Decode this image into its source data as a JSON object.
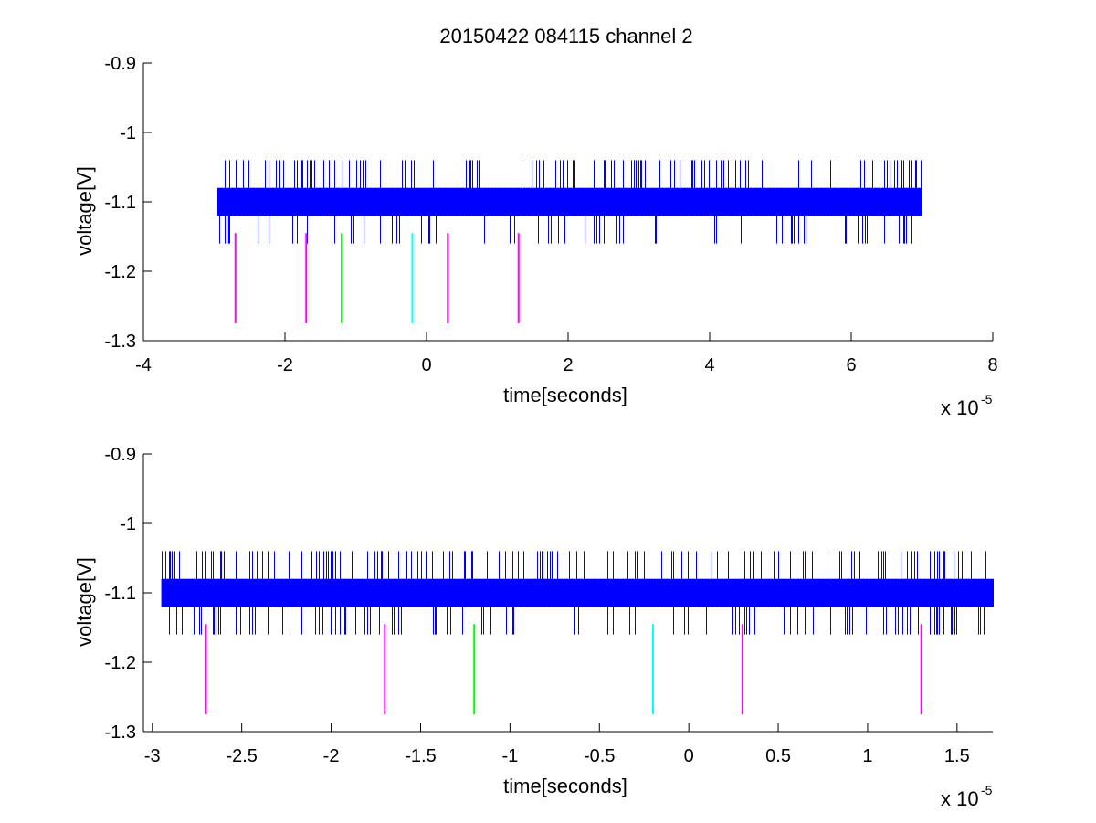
{
  "title": "20150422 084115 channel 2",
  "chart_data": [
    {
      "type": "line",
      "xlabel": "time[seconds]",
      "ylabel": "voltage[V]",
      "x_multiplier_prefix": "x 10",
      "x_multiplier_exponent": "-5",
      "xlim": [
        -4,
        8
      ],
      "ylim": [
        -1.3,
        -0.9
      ],
      "x_ticks": [
        -4,
        -2,
        0,
        2,
        4,
        6,
        8
      ],
      "x_tick_labels": [
        "-4",
        "-2",
        "0",
        "2",
        "4",
        "6",
        "8"
      ],
      "y_ticks": [
        -1.3,
        -1.2,
        -1.1,
        -1,
        -0.9
      ],
      "y_tick_labels": [
        "-1.3",
        "-1.2",
        "-1.1",
        "-1",
        "-0.9"
      ],
      "grid": false,
      "signal": {
        "color": "#0000ff",
        "x_range": [
          -2.95,
          7.0
        ],
        "band": [
          -1.12,
          -1.08
        ],
        "spike_high": -1.04,
        "spike_low": -1.16
      },
      "markers": [
        {
          "x": -2.7,
          "color": "#ff00ff",
          "y": [
            -1.275,
            -1.145
          ]
        },
        {
          "x": -1.7,
          "color": "#ff00ff",
          "y": [
            -1.275,
            -1.145
          ]
        },
        {
          "x": -1.2,
          "color": "#00ff00",
          "y": [
            -1.275,
            -1.145
          ]
        },
        {
          "x": -0.2,
          "color": "#00ffff",
          "y": [
            -1.275,
            -1.145
          ]
        },
        {
          "x": 0.3,
          "color": "#ff00ff",
          "y": [
            -1.275,
            -1.145
          ]
        },
        {
          "x": 1.3,
          "color": "#ff00ff",
          "y": [
            -1.275,
            -1.145
          ]
        }
      ]
    },
    {
      "type": "line",
      "xlabel": "time[seconds]",
      "ylabel": "voltage[V]",
      "x_multiplier_prefix": "x 10",
      "x_multiplier_exponent": "-5",
      "xlim": [
        -3.05,
        1.7
      ],
      "ylim": [
        -1.3,
        -0.9
      ],
      "x_ticks": [
        -3,
        -2.5,
        -2,
        -1.5,
        -1,
        -0.5,
        0,
        0.5,
        1,
        1.5
      ],
      "x_tick_labels": [
        "-3",
        "-2.5",
        "-2",
        "-1.5",
        "-1",
        "-0.5",
        "0",
        "0.5",
        "1",
        "1.5"
      ],
      "y_ticks": [
        -1.3,
        -1.2,
        -1.1,
        -1,
        -0.9
      ],
      "y_tick_labels": [
        "-1.3",
        "-1.2",
        "-1.1",
        "-1",
        "-0.9"
      ],
      "grid": false,
      "signal": {
        "color": "#0000ff",
        "x_range": [
          -2.95,
          1.7
        ],
        "band": [
          -1.12,
          -1.08
        ],
        "spike_high": -1.04,
        "spike_low": -1.16
      },
      "markers": [
        {
          "x": -2.7,
          "color": "#ff00ff",
          "y": [
            -1.275,
            -1.145
          ]
        },
        {
          "x": -1.7,
          "color": "#ff00ff",
          "y": [
            -1.275,
            -1.145
          ]
        },
        {
          "x": -1.2,
          "color": "#00ff00",
          "y": [
            -1.275,
            -1.145
          ]
        },
        {
          "x": -0.2,
          "color": "#00ffff",
          "y": [
            -1.275,
            -1.145
          ]
        },
        {
          "x": 0.3,
          "color": "#ff00ff",
          "y": [
            -1.275,
            -1.145
          ]
        },
        {
          "x": 1.3,
          "color": "#ff00ff",
          "y": [
            -1.275,
            -1.145
          ]
        }
      ]
    }
  ]
}
